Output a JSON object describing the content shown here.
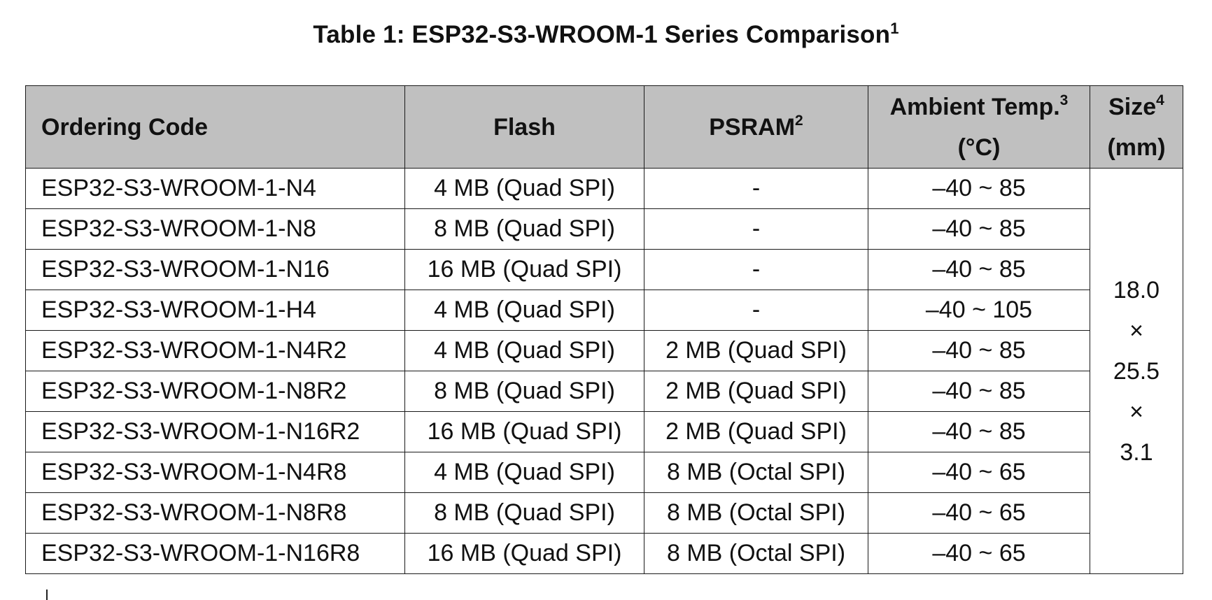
{
  "caption": {
    "text": "Table 1: ESP32-S3-WROOM-1 Series Comparison",
    "footnote_ref": "1"
  },
  "headers": {
    "ordering_code": "Ordering Code",
    "flash": "Flash",
    "psram": "PSRAM",
    "psram_note": "2",
    "temp_line1": "Ambient Temp.",
    "temp_note": "3",
    "temp_line2": "(°C)",
    "size_line1": "Size",
    "size_note": "4",
    "size_line2": "(mm)"
  },
  "rows": [
    {
      "code": "ESP32-S3-WROOM-1-N4",
      "flash": "4 MB (Quad SPI)",
      "psram": "-",
      "temp": "–40 ~ 85"
    },
    {
      "code": "ESP32-S3-WROOM-1-N8",
      "flash": "8 MB (Quad SPI)",
      "psram": "-",
      "temp": "–40 ~ 85"
    },
    {
      "code": "ESP32-S3-WROOM-1-N16",
      "flash": "16 MB (Quad SPI)",
      "psram": "-",
      "temp": "–40 ~ 85"
    },
    {
      "code": "ESP32-S3-WROOM-1-H4",
      "flash": "4 MB (Quad SPI)",
      "psram": "-",
      "temp": "–40 ~ 105"
    },
    {
      "code": "ESP32-S3-WROOM-1-N4R2",
      "flash": "4 MB (Quad SPI)",
      "psram": "2 MB (Quad SPI)",
      "temp": "–40 ~ 85"
    },
    {
      "code": "ESP32-S3-WROOM-1-N8R2",
      "flash": "8 MB (Quad SPI)",
      "psram": "2 MB (Quad SPI)",
      "temp": "–40 ~ 85"
    },
    {
      "code": "ESP32-S3-WROOM-1-N16R2",
      "flash": "16 MB (Quad SPI)",
      "psram": "2 MB (Quad SPI)",
      "temp": "–40 ~ 85"
    },
    {
      "code": "ESP32-S3-WROOM-1-N4R8",
      "flash": "4 MB (Quad SPI)",
      "psram": "8 MB (Octal SPI)",
      "temp": "–40 ~ 65"
    },
    {
      "code": "ESP32-S3-WROOM-1-N8R8",
      "flash": "8 MB (Quad SPI)",
      "psram": "8 MB (Octal SPI)",
      "temp": "–40 ~ 65"
    },
    {
      "code": "ESP32-S3-WROOM-1-N16R8",
      "flash": "16 MB (Quad SPI)",
      "psram": "8 MB (Octal SPI)",
      "temp": "–40 ~ 65"
    }
  ],
  "size": {
    "length": "18.0",
    "sep1": "×",
    "width": "25.5",
    "sep2": "×",
    "height": "3.1"
  },
  "colors": {
    "header_bg": "#c0c0c0",
    "border": "#1a1a1a",
    "text": "#111111"
  }
}
